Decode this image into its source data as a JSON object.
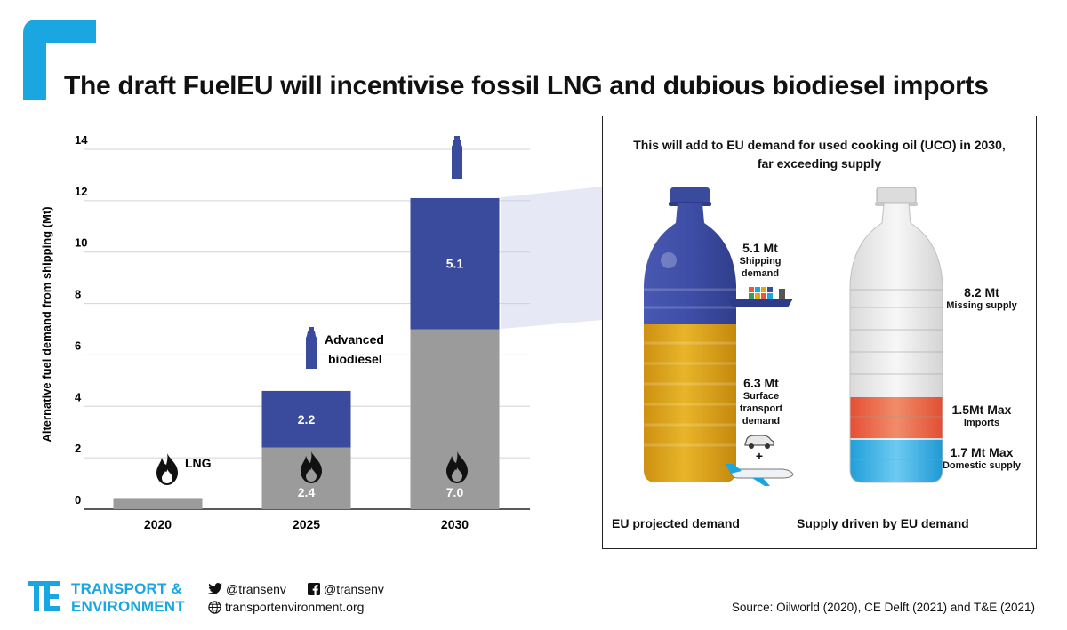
{
  "title": "The draft FuelEU will incentivise fossil LNG and dubious biodiesel imports",
  "chart_data": {
    "type": "bar",
    "stacked": true,
    "ylabel": "Alternative fuel demand from shipping (Mt)",
    "ylim": [
      0,
      14
    ],
    "yticks": [
      0,
      2,
      4,
      6,
      8,
      10,
      12,
      14
    ],
    "categories": [
      "2020",
      "2025",
      "2030"
    ],
    "series": [
      {
        "key": "lng",
        "values": [
          0.4,
          2.4,
          7.0
        ],
        "labels": [
          "",
          "2.4",
          "7.0"
        ],
        "color": "#9b9b9b"
      },
      {
        "key": "biodiesel",
        "values": [
          0,
          2.2,
          5.1
        ],
        "labels": [
          "",
          "2.2",
          "5.1"
        ],
        "color": "#3a4a9c"
      }
    ],
    "annotations": {
      "lng": "LNG",
      "advanced_biodiesel_line1": "Advanced",
      "advanced_biodiesel_line2": "biodiesel"
    },
    "grid": true
  },
  "uco_panel": {
    "title_line1": "This will add to EU demand for used cooking oil (UCO) in 2030,",
    "title_line2": "far exceeding supply",
    "left_bottle": {
      "caption": "EU projected demand",
      "shipping_value": "5.1 Mt",
      "shipping_label_line1": "Shipping",
      "shipping_label_line2": "demand",
      "surface_value": "6.3 Mt",
      "surface_label_line1": "Surface",
      "surface_label_line2": "transport",
      "surface_label_line3": "demand",
      "plus": "+"
    },
    "right_bottle": {
      "caption": "Supply driven by EU demand",
      "missing_value": "8.2 Mt",
      "missing_label": "Missing supply",
      "imports_value": "1.5Mt Max",
      "imports_label": "Imports",
      "domestic_value": "1.7 Mt Max",
      "domestic_label": "Domestic supply"
    },
    "colors": {
      "shipping": "#3a4a9c",
      "surface": "#e0a817",
      "imports": "#e9583a",
      "domestic": "#1aa6e0"
    }
  },
  "footer": {
    "brand_line1": "TRANSPORT &",
    "brand_line2": "ENVIRONMENT",
    "twitter": "@transenv",
    "facebook": "@transenv",
    "website": "transportenvironment.org",
    "source": "Source: Oilworld (2020), CE Delft (2021) and T&E (2021)"
  },
  "colors": {
    "brand": "#1aa6e0",
    "lng": "#9b9b9b",
    "biodiesel": "#3a4a9c"
  }
}
